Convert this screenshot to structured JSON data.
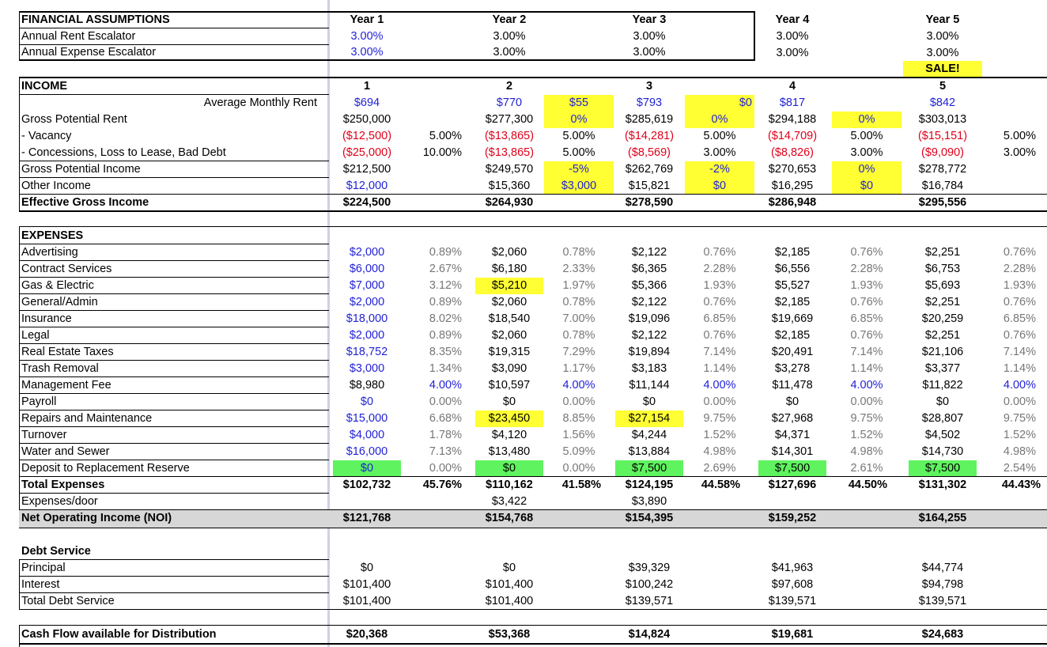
{
  "assumptions": {
    "title": "FINANCIAL ASSUMPTIONS",
    "years": [
      "Year 1",
      "Year 2",
      "Year 3",
      "Year 4",
      "Year 5"
    ],
    "rows": [
      {
        "label": "Annual Rent Escalator",
        "values": [
          "3.00%",
          "3.00%",
          "3.00%",
          "3.00%",
          "3.00%"
        ]
      },
      {
        "label": "Annual Expense Escalator",
        "values": [
          "3.00%",
          "3.00%",
          "3.00%",
          "3.00%",
          "3.00%"
        ]
      }
    ],
    "sale_label": "SALE!"
  },
  "income": {
    "title": "INCOME",
    "year_nums": [
      "1",
      "2",
      "3",
      "4",
      "5"
    ],
    "avg_rent_label": "Average Monthly Rent",
    "avg_rent": [
      "$694",
      "$770",
      "$793",
      "$817",
      "$842"
    ],
    "avg_rent_delta": [
      "$55",
      "$0"
    ],
    "gpr": {
      "label": "Gross Potential Rent",
      "values": [
        "$250,000",
        "$277,300",
        "$285,619",
        "$294,188",
        "$303,013"
      ],
      "deltas": [
        "0%",
        "0%",
        "0%"
      ]
    },
    "vacancy": {
      "label": "- Vacancy",
      "values": [
        "($12,500)",
        "($13,865)",
        "($14,281)",
        "($14,709)",
        "($15,151)"
      ],
      "pcts": [
        "5.00%",
        "5.00%",
        "5.00%",
        "5.00%",
        "5.00%"
      ]
    },
    "concessions": {
      "label": "- Concessions, Loss to Lease, Bad Debt",
      "values": [
        "($25,000)",
        "($13,865)",
        "($8,569)",
        "($8,826)",
        "($9,090)"
      ],
      "pcts": [
        "10.00%",
        "5.00%",
        "3.00%",
        "3.00%",
        "3.00%"
      ]
    },
    "gpi": {
      "label": "Gross Potential Income",
      "values": [
        "$212,500",
        "$249,570",
        "$262,769",
        "$270,653",
        "$278,772"
      ],
      "deltas": [
        "-5%",
        "-2%",
        "0%"
      ]
    },
    "other": {
      "label": "Other Income",
      "values": [
        "$12,000",
        "$15,360",
        "$15,821",
        "$16,295",
        "$16,784"
      ],
      "deltas": [
        "$3,000",
        "$0",
        "$0"
      ]
    },
    "egi": {
      "label": "Effective Gross Income",
      "values": [
        "$224,500",
        "$264,930",
        "$278,590",
        "$286,948",
        "$295,556"
      ]
    }
  },
  "expenses": {
    "title": "EXPENSES",
    "rows": [
      {
        "label": "Advertising",
        "values": [
          "$2,000",
          "$2,060",
          "$2,122",
          "$2,185",
          "$2,251"
        ],
        "pcts": [
          "0.89%",
          "0.78%",
          "0.76%",
          "0.76%",
          "0.76%"
        ]
      },
      {
        "label": "Contract Services",
        "values": [
          "$6,000",
          "$6,180",
          "$6,365",
          "$6,556",
          "$6,753"
        ],
        "pcts": [
          "2.67%",
          "2.33%",
          "2.28%",
          "2.28%",
          "2.28%"
        ]
      },
      {
        "label": "Gas & Electric",
        "values": [
          "$7,000",
          "$5,210",
          "$5,366",
          "$5,527",
          "$5,693"
        ],
        "pcts": [
          "3.12%",
          "1.97%",
          "1.93%",
          "1.93%",
          "1.93%"
        ]
      },
      {
        "label": "General/Admin",
        "values": [
          "$2,000",
          "$2,060",
          "$2,122",
          "$2,185",
          "$2,251"
        ],
        "pcts": [
          "0.89%",
          "0.78%",
          "0.76%",
          "0.76%",
          "0.76%"
        ]
      },
      {
        "label": "Insurance",
        "values": [
          "$18,000",
          "$18,540",
          "$19,096",
          "$19,669",
          "$20,259"
        ],
        "pcts": [
          "8.02%",
          "7.00%",
          "6.85%",
          "6.85%",
          "6.85%"
        ]
      },
      {
        "label": "Legal",
        "values": [
          "$2,000",
          "$2,060",
          "$2,122",
          "$2,185",
          "$2,251"
        ],
        "pcts": [
          "0.89%",
          "0.78%",
          "0.76%",
          "0.76%",
          "0.76%"
        ]
      },
      {
        "label": "Real Estate Taxes",
        "values": [
          "$18,752",
          "$19,315",
          "$19,894",
          "$20,491",
          "$21,106"
        ],
        "pcts": [
          "8.35%",
          "7.29%",
          "7.14%",
          "7.14%",
          "7.14%"
        ]
      },
      {
        "label": "Trash Removal",
        "values": [
          "$3,000",
          "$3,090",
          "$3,183",
          "$3,278",
          "$3,377"
        ],
        "pcts": [
          "1.34%",
          "1.17%",
          "1.14%",
          "1.14%",
          "1.14%"
        ]
      },
      {
        "label": "Management Fee",
        "values": [
          "$8,980",
          "$10,597",
          "$11,144",
          "$11,478",
          "$11,822"
        ],
        "pcts": [
          "4.00%",
          "4.00%",
          "4.00%",
          "4.00%",
          "4.00%"
        ]
      },
      {
        "label": "Payroll",
        "values": [
          "$0",
          "$0",
          "$0",
          "$0",
          "$0"
        ],
        "pcts": [
          "0.00%",
          "0.00%",
          "0.00%",
          "0.00%",
          "0.00%"
        ]
      },
      {
        "label": "Repairs and Maintenance",
        "values": [
          "$15,000",
          "$23,450",
          "$27,154",
          "$27,968",
          "$28,807"
        ],
        "pcts": [
          "6.68%",
          "8.85%",
          "9.75%",
          "9.75%",
          "9.75%"
        ]
      },
      {
        "label": "Turnover",
        "values": [
          "$4,000",
          "$4,120",
          "$4,244",
          "$4,371",
          "$4,502"
        ],
        "pcts": [
          "1.78%",
          "1.56%",
          "1.52%",
          "1.52%",
          "1.52%"
        ]
      },
      {
        "label": "Water and Sewer",
        "values": [
          "$16,000",
          "$13,480",
          "$13,884",
          "$14,301",
          "$14,730"
        ],
        "pcts": [
          "7.13%",
          "5.09%",
          "4.98%",
          "4.98%",
          "4.98%"
        ]
      },
      {
        "label": "Deposit to Replacement Reserve",
        "values": [
          "$0",
          "$0",
          "$7,500",
          "$7,500",
          "$7,500"
        ],
        "pcts": [
          "0.00%",
          "0.00%",
          "2.69%",
          "2.61%",
          "2.54%"
        ]
      }
    ],
    "total": {
      "label": "Total Expenses",
      "values": [
        "$102,732",
        "$110,162",
        "$124,195",
        "$127,696",
        "$131,302"
      ],
      "pcts": [
        "45.76%",
        "41.58%",
        "44.58%",
        "44.50%",
        "44.43%"
      ]
    },
    "per_door": {
      "label": "Expenses/door",
      "values": [
        "$3,422",
        "$3,890"
      ]
    },
    "noi": {
      "label": "Net Operating Income (NOI)",
      "values": [
        "$121,768",
        "$154,768",
        "$154,395",
        "$159,252",
        "$164,255"
      ]
    }
  },
  "debt": {
    "title": "Debt Service",
    "principal": {
      "label": "Principal",
      "values": [
        "$0",
        "$0",
        "$39,329",
        "$41,963",
        "$44,774"
      ]
    },
    "interest": {
      "label": "Interest",
      "values": [
        "$101,400",
        "$101,400",
        "$100,242",
        "$97,608",
        "$94,798"
      ]
    },
    "total": {
      "label": "Total Debt Service",
      "values": [
        "$101,400",
        "$101,400",
        "$139,571",
        "$139,571",
        "$139,571"
      ]
    }
  },
  "cashflow": {
    "label": "Cash Flow available for Distribution",
    "values": [
      "$20,368",
      "$53,368",
      "$14,824",
      "$19,681",
      "$24,683"
    ]
  },
  "colors": {
    "input_blue": "#1f1fd6",
    "negative_red": "#e0001a",
    "highlight_yellow": "#ffff33",
    "highlight_green": "#5ff35f",
    "band_gray": "#d7d7d7"
  }
}
